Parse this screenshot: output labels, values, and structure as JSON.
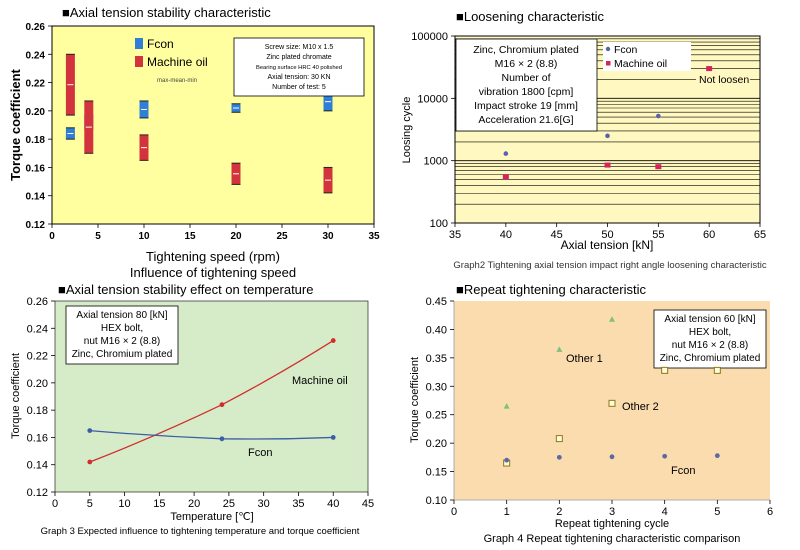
{
  "chart_data": [
    {
      "type": "scatter",
      "title": "■Axial tension stability characteristic",
      "xlabel": "Tightening speed (rpm)",
      "caption": "Influence of tightening speed",
      "ylabel": "Torque coefficient",
      "xlim": [
        0,
        35
      ],
      "ylim": [
        0.12,
        0.26
      ],
      "x_ticks": [
        "0",
        "5",
        "10",
        "15",
        "20",
        "25",
        "30",
        "35"
      ],
      "y_ticks": [
        "0.12",
        "0.14",
        "0.16",
        "0.18",
        "0.20",
        "0.22",
        "0.24",
        "0.26"
      ],
      "legend_position": "top-left",
      "background": "#ffffa0",
      "series": [
        {
          "name": "Fcon",
          "color": "#2f7fd6",
          "x": [
            2,
            4,
            10,
            20,
            30
          ],
          "low": [
            0.18,
            0.187,
            0.195,
            0.199,
            0.2
          ],
          "high": [
            0.188,
            0.197,
            0.207,
            0.205,
            0.213
          ]
        },
        {
          "name": "Machine oil",
          "color": "#d2333c",
          "x": [
            2,
            4,
            10,
            20,
            30
          ],
          "low": [
            0.197,
            0.17,
            0.165,
            0.148,
            0.142
          ],
          "high": [
            0.24,
            0.207,
            0.183,
            0.163,
            0.16
          ]
        }
      ],
      "note": [
        "Screw size: M10 x 1.5",
        "Zinc plated chromate",
        "Bearing surface HRC 40 polished",
        "Axial tension: 30 KN",
        "Number of test: 5"
      ],
      "label": "max-mean-min"
    },
    {
      "type": "scatter",
      "title": "■Loosening characteristic",
      "xlabel": "Axial tension [kN]",
      "ylabel": "Loosing cycle",
      "caption": "Graph2 Tightening axial tension impact right angle loosening characteristic",
      "xlim": [
        35,
        65
      ],
      "ylim": [
        100,
        100000
      ],
      "yscale": "log",
      "x_ticks": [
        "35",
        "40",
        "45",
        "50",
        "55",
        "60",
        "65"
      ],
      "y_ticks": [
        "100",
        "1000",
        "10000",
        "100000"
      ],
      "grid": true,
      "legend_position": "top-center",
      "background": "#fff8c0",
      "series": [
        {
          "name": "Fcon",
          "color": "#5b63a8",
          "marker": "circle",
          "x": [
            40,
            50,
            55
          ],
          "y": [
            1300,
            2500,
            5200
          ]
        },
        {
          "name": "Machine oil",
          "color": "#d4245a",
          "marker": "square",
          "x": [
            40,
            50,
            55,
            60
          ],
          "y": [
            550,
            850,
            800,
            30000
          ]
        }
      ],
      "note": [
        "Zinc, Chromium plated",
        "M16 × 2 (8.8)",
        "Number of",
        "vibration 1800 [cpm]",
        "Impact stroke 19 [mm]",
        "Acceleration 21.6[G]"
      ],
      "annotation": "Not loosen"
    },
    {
      "type": "line",
      "title": "■Axial tension stability effect on temperature",
      "xlabel": "Temperature [℃]",
      "ylabel": "Torque coefficient",
      "caption": "Graph 3 Expected influence to tightening temperature and torque coefficient",
      "xlim": [
        0,
        45
      ],
      "ylim": [
        0.12,
        0.26
      ],
      "x_ticks": [
        "0",
        "5",
        "10",
        "15",
        "20",
        "25",
        "30",
        "35",
        "40",
        "45"
      ],
      "y_ticks": [
        "0.12",
        "0.14",
        "0.16",
        "0.18",
        "0.20",
        "0.22",
        "0.24",
        "0.26"
      ],
      "background": "#d6ecc8",
      "series": [
        {
          "name": "Machine oil",
          "color": "#d22d2d",
          "x": [
            5,
            24,
            40
          ],
          "y": [
            0.142,
            0.184,
            0.231
          ]
        },
        {
          "name": "Fcon",
          "color": "#3b5ea6",
          "x": [
            5,
            24,
            40
          ],
          "y": [
            0.165,
            0.159,
            0.16
          ]
        }
      ],
      "note": [
        "Axial tension 80 [kN]",
        "HEX bolt,",
        "nut M16 × 2 (8.8)",
        "Zinc, Chromium plated"
      ]
    },
    {
      "type": "scatter",
      "title": "■Repeat tightening characteristic",
      "xlabel": "Repeat tightening cycle",
      "ylabel": "Torque coefficient",
      "caption": "Graph 4 Repeat tightening characteristic comparison",
      "xlim": [
        0,
        6
      ],
      "ylim": [
        0.1,
        0.45
      ],
      "x_ticks": [
        "0",
        "1",
        "2",
        "3",
        "4",
        "5",
        "6"
      ],
      "y_ticks": [
        "0.10",
        "0.15",
        "0.20",
        "0.25",
        "0.30",
        "0.35",
        "0.40",
        "0.45"
      ],
      "background": "#fbdcae",
      "series": [
        {
          "name": "Other 1",
          "color": "#7fbf7f",
          "marker": "triangle",
          "x": [
            1,
            2,
            3
          ],
          "y": [
            0.265,
            0.365,
            0.418
          ]
        },
        {
          "name": "Other 2",
          "color": "#8a7a10",
          "marker": "square",
          "x": [
            1,
            2,
            3,
            4,
            5
          ],
          "y": [
            0.165,
            0.208,
            0.27,
            0.328,
            0.328
          ]
        },
        {
          "name": "Fcon",
          "color": "#5b6aa6",
          "marker": "circle",
          "x": [
            1,
            2,
            3,
            4,
            5
          ],
          "y": [
            0.17,
            0.175,
            0.176,
            0.177,
            0.178
          ]
        }
      ],
      "note": [
        "Axial tension 60 [kN]",
        "HEX bolt,",
        "nut M16 × 2 (8.8)",
        "Zinc, Chromium plated"
      ]
    }
  ]
}
